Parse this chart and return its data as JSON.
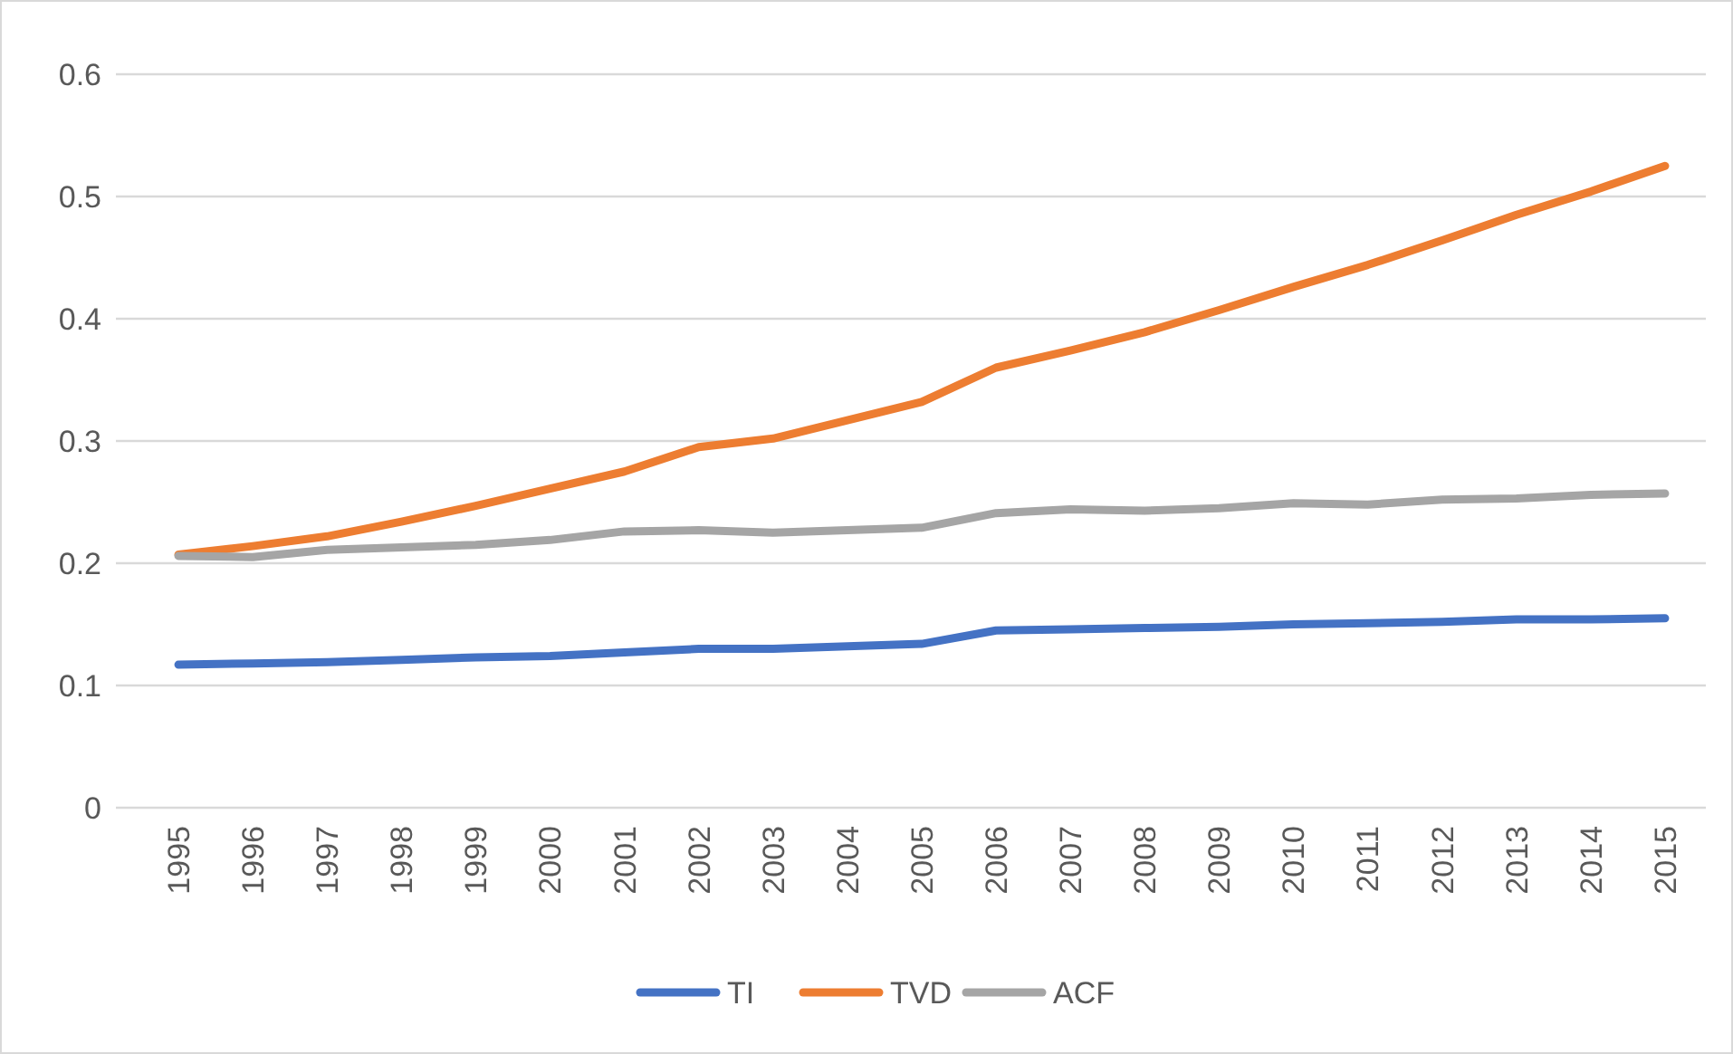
{
  "chart_data": {
    "type": "line",
    "categories": [
      "1995",
      "1996",
      "1997",
      "1998",
      "1999",
      "2000",
      "2001",
      "2002",
      "2003",
      "2004",
      "2005",
      "2006",
      "2007",
      "2008",
      "2009",
      "2010",
      "2011",
      "2012",
      "2013",
      "2014",
      "2015"
    ],
    "series": [
      {
        "name": "TI",
        "color": "#4472c4",
        "values": [
          0.117,
          0.118,
          0.119,
          0.121,
          0.123,
          0.124,
          0.127,
          0.13,
          0.13,
          0.132,
          0.134,
          0.145,
          0.146,
          0.147,
          0.148,
          0.15,
          0.151,
          0.152,
          0.154,
          0.154,
          0.155
        ]
      },
      {
        "name": "TVD",
        "color": "#ed7d31",
        "values": [
          0.207,
          0.214,
          0.222,
          0.234,
          0.247,
          0.261,
          0.275,
          0.295,
          0.302,
          0.317,
          0.332,
          0.36,
          0.374,
          0.389,
          0.407,
          0.426,
          0.444,
          0.464,
          0.485,
          0.504,
          0.525
        ]
      },
      {
        "name": "ACF",
        "color": "#a5a5a5",
        "values": [
          0.206,
          0.205,
          0.211,
          0.213,
          0.215,
          0.219,
          0.226,
          0.227,
          0.225,
          0.227,
          0.229,
          0.241,
          0.244,
          0.243,
          0.245,
          0.249,
          0.248,
          0.252,
          0.253,
          0.256,
          0.257
        ]
      }
    ],
    "ylim": [
      0,
      0.6
    ],
    "yticks": [
      0,
      0.1,
      0.2,
      0.3,
      0.4,
      0.5,
      0.6
    ],
    "grid": "y",
    "legend": "bottom",
    "marker": "none",
    "line_style": "solid"
  }
}
